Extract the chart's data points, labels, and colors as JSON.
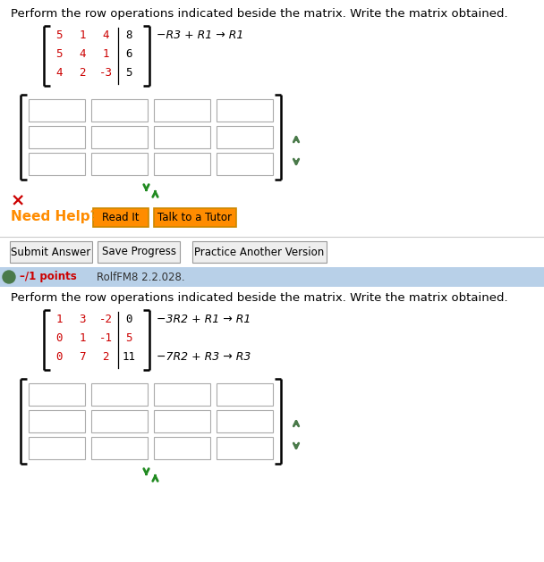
{
  "bg_color": "#ffffff",
  "section1": {
    "instruction": "Perform the row operations indicated beside the matrix. Write the matrix obtained.",
    "matrix": [
      [
        "5",
        "1",
        "4",
        "8"
      ],
      [
        "5",
        "4",
        "1",
        "6"
      ],
      [
        "4",
        "2",
        "-3",
        "5"
      ]
    ],
    "aug_col": 3,
    "aug_red_rows": [],
    "op_texts": [
      {
        "text": "−R3 + R1 → R1",
        "row": 0
      }
    ]
  },
  "section2": {
    "instruction": "Perform the row operations indicated beside the matrix. Write the matrix obtained.",
    "matrix": [
      [
        "1",
        "3",
        "-2",
        "0"
      ],
      [
        "0",
        "1",
        "-1",
        "5"
      ],
      [
        "0",
        "7",
        "2",
        "11"
      ]
    ],
    "aug_col": 3,
    "aug_red_rows": [
      1
    ],
    "op_texts": [
      {
        "text": "−3R2 + R1 → R1",
        "row": 0
      },
      {
        "text": "−7R2 + R3 → R3",
        "row": 2
      }
    ]
  },
  "header2_color": "#b8d0e8",
  "header2_text_red": "–/1 points",
  "header2_text_black": "RolfFM8 2.2.028.",
  "button_row": [
    "Submit Answer",
    "Save Progress",
    "Practice Another Version"
  ],
  "need_help_color": "#FF8C00",
  "btn_color": "#FF8C00",
  "red_x_color": "#cc0000",
  "matrix_red_color": "#cc0000",
  "arrow_color": "#228B22",
  "side_arrow_color": "#4a7a4a",
  "box_border_color": "#aaaaaa",
  "sep_color": "#cccccc",
  "btn_border_color": "#999999",
  "btn_face_color": "#eeeeee"
}
